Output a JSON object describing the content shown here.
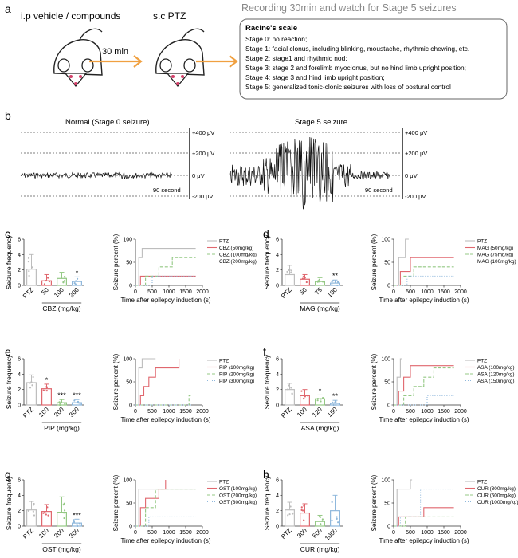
{
  "panel_a": {
    "label": "a",
    "step1": "i.p vehicle / compounds",
    "step2": "s.c PTZ",
    "interval": "30 min",
    "recording_title": "Recording 30min and watch for Stage 5 seizures",
    "racine_title": "Racine's scale",
    "stages": [
      "Stage 0: no reaction;",
      "Stage 1: facial clonus, including blinking, moustache, rhythmic chewing, etc.",
      "Stage 2: stage1 and rhythmic nod;",
      "Stage 3: stage 2 and forelimb myoclonus, but no hind limb upright position;",
      "Stage 4: stage 3 and hind limb upright position;",
      "Stage 5: generalized tonic-clonic seizures with loss of postural control"
    ]
  },
  "panel_b": {
    "label": "b",
    "left_title": "Normal (Stage 0 seizure)",
    "right_title": "Stage 5 seizure",
    "scale_labels": [
      "+400 μV",
      "+200 μV",
      "0 μV",
      "-200 μV"
    ],
    "duration_label": "90 second"
  },
  "chart_data": [
    {
      "panel": "c",
      "type": "bar",
      "title": "",
      "ylabel": "Seizure frequency",
      "xlabel": "CBZ (mg/kg)",
      "categories": [
        "PTZ",
        "50",
        "100",
        "200"
      ],
      "values": [
        2.1,
        0.6,
        0.9,
        0.5
      ],
      "errors": [
        1.9,
        0.8,
        0.8,
        0.6
      ],
      "sig": [
        "",
        "",
        "",
        "*"
      ],
      "colors": [
        "#bdbdbd",
        "#e0676e",
        "#94c884",
        "#8fb8dc"
      ],
      "ylim": [
        0,
        6
      ],
      "yticks": [
        0,
        2,
        4,
        6
      ]
    },
    {
      "panel": "c",
      "type": "line",
      "ylabel": "Seizure percent (%)",
      "xlabel": "Time after epilepcy induction (s)",
      "xlim": [
        0,
        2000
      ],
      "xticks": [
        0,
        500,
        1000,
        1500,
        2000
      ],
      "ylim": [
        0,
        100
      ],
      "yticks": [
        0,
        50,
        100
      ],
      "series": [
        {
          "name": "PTZ",
          "color": "#bdbdbd",
          "dash": "",
          "points": [
            [
              0,
              0
            ],
            [
              100,
              0
            ],
            [
              100,
              60
            ],
            [
              200,
              60
            ],
            [
              200,
              80
            ],
            [
              1800,
              80
            ]
          ]
        },
        {
          "name": "CBZ (50mg/kg)",
          "color": "#e0676e",
          "dash": "",
          "points": [
            [
              0,
              0
            ],
            [
              150,
              0
            ],
            [
              150,
              20
            ],
            [
              1800,
              20
            ]
          ]
        },
        {
          "name": "CBZ (100mg/kg)",
          "color": "#94c884",
          "dash": "4,2",
          "points": [
            [
              0,
              0
            ],
            [
              300,
              0
            ],
            [
              300,
              20
            ],
            [
              700,
              20
            ],
            [
              700,
              40
            ],
            [
              1100,
              40
            ],
            [
              1100,
              60
            ],
            [
              1800,
              60
            ]
          ]
        },
        {
          "name": "CBZ (200mg/kg)",
          "color": "#8fb8dc",
          "dash": "1,2",
          "points": [
            [
              0,
              0
            ],
            [
              500,
              0
            ],
            [
              500,
              20
            ],
            [
              1800,
              20
            ]
          ]
        }
      ]
    },
    {
      "panel": "d",
      "type": "bar",
      "ylabel": "Seizure frequency",
      "xlabel": "MAG (mg/kg)",
      "categories": [
        "PTZ",
        "50",
        "75",
        "100"
      ],
      "values": [
        1.4,
        0.8,
        0.5,
        0.3
      ],
      "errors": [
        1.2,
        0.6,
        0.5,
        0.4
      ],
      "sig": [
        "",
        "",
        "",
        "**"
      ],
      "colors": [
        "#bdbdbd",
        "#e0676e",
        "#94c884",
        "#8fb8dc"
      ],
      "ylim": [
        0,
        6
      ],
      "yticks": [
        0,
        2,
        4,
        6
      ]
    },
    {
      "panel": "d",
      "type": "line",
      "ylabel": "Seizure percent (%)",
      "xlabel": "Time after epilepcy induction (s)",
      "xlim": [
        0,
        2000
      ],
      "xticks": [
        0,
        500,
        1000,
        1500,
        2000
      ],
      "ylim": [
        0,
        100
      ],
      "yticks": [
        0,
        50,
        100
      ],
      "series": [
        {
          "name": "PTZ",
          "color": "#bdbdbd",
          "dash": "",
          "points": [
            [
              0,
              0
            ],
            [
              150,
              0
            ],
            [
              150,
              60
            ],
            [
              350,
              60
            ],
            [
              350,
              100
            ],
            [
              450,
              100
            ]
          ]
        },
        {
          "name": "MAG (50mg/kg)",
          "color": "#e0676e",
          "dash": "",
          "points": [
            [
              0,
              0
            ],
            [
              200,
              0
            ],
            [
              200,
              30
            ],
            [
              500,
              30
            ],
            [
              500,
              60
            ],
            [
              1800,
              60
            ]
          ]
        },
        {
          "name": "MAG (75mg/kg)",
          "color": "#94c884",
          "dash": "4,2",
          "points": [
            [
              0,
              0
            ],
            [
              250,
              0
            ],
            [
              250,
              20
            ],
            [
              600,
              20
            ],
            [
              600,
              40
            ],
            [
              1800,
              40
            ]
          ]
        },
        {
          "name": "MAG (100mg/kg)",
          "color": "#8fb8dc",
          "dash": "1,2",
          "points": [
            [
              0,
              0
            ],
            [
              400,
              0
            ],
            [
              400,
              20
            ],
            [
              1800,
              20
            ]
          ]
        }
      ]
    },
    {
      "panel": "e",
      "type": "bar",
      "ylabel": "Seizure frequency",
      "xlabel": "PIP (mg/kg)",
      "categories": [
        "PTZ",
        "100",
        "200",
        "300"
      ],
      "values": [
        2.9,
        2.1,
        0.3,
        0.3
      ],
      "errors": [
        1.0,
        0.6,
        0.4,
        0.4
      ],
      "sig": [
        "",
        "*",
        "***",
        "***"
      ],
      "colors": [
        "#bdbdbd",
        "#e0676e",
        "#94c884",
        "#8fb8dc"
      ],
      "ylim": [
        0,
        6
      ],
      "yticks": [
        0,
        2,
        4,
        6
      ]
    },
    {
      "panel": "e",
      "type": "line",
      "ylabel": "Seizure percent (%)",
      "xlabel": "Time after epilepcy induction (s)",
      "xlim": [
        0,
        2000
      ],
      "xticks": [
        0,
        500,
        1000,
        1500,
        2000
      ],
      "ylim": [
        0,
        100
      ],
      "yticks": [
        0,
        50,
        100
      ],
      "series": [
        {
          "name": "PTZ",
          "color": "#bdbdbd",
          "dash": "",
          "points": [
            [
              0,
              0
            ],
            [
              100,
              0
            ],
            [
              100,
              80
            ],
            [
              200,
              80
            ],
            [
              200,
              100
            ],
            [
              600,
              100
            ]
          ]
        },
        {
          "name": "PIP (100mg/kg)",
          "color": "#e0676e",
          "dash": "",
          "points": [
            [
              0,
              0
            ],
            [
              150,
              0
            ],
            [
              150,
              20
            ],
            [
              250,
              20
            ],
            [
              250,
              40
            ],
            [
              400,
              40
            ],
            [
              400,
              60
            ],
            [
              600,
              60
            ],
            [
              600,
              80
            ],
            [
              1300,
              80
            ],
            [
              1300,
              100
            ]
          ]
        },
        {
          "name": "PIP (200mg/kg)",
          "color": "#94c884",
          "dash": "4,2",
          "points": [
            [
              0,
              0
            ],
            [
              1600,
              0
            ],
            [
              1600,
              20
            ],
            [
              1650,
              20
            ]
          ]
        },
        {
          "name": "PIP (300mg/kg)",
          "color": "#8fb8dc",
          "dash": "1,2",
          "points": [
            [
              0,
              0
            ],
            [
              1700,
              0
            ]
          ]
        }
      ]
    },
    {
      "panel": "f",
      "type": "bar",
      "ylabel": "Seizure frequency",
      "xlabel": "ASA (mg/kg)",
      "categories": [
        "PTZ",
        "100",
        "120",
        "150"
      ],
      "values": [
        2.0,
        1.2,
        0.8,
        0.2
      ],
      "errors": [
        0.8,
        0.8,
        0.5,
        0.4
      ],
      "sig": [
        "",
        "",
        "*",
        "**"
      ],
      "colors": [
        "#bdbdbd",
        "#e0676e",
        "#94c884",
        "#8fb8dc"
      ],
      "ylim": [
        0,
        6
      ],
      "yticks": [
        0,
        2,
        4,
        6
      ]
    },
    {
      "panel": "f",
      "type": "line",
      "ylabel": "Seizure percent (%)",
      "xlabel": "Time after epilepcy induction (s)",
      "xlim": [
        0,
        2000
      ],
      "xticks": [
        0,
        500,
        1000,
        1500,
        2000
      ],
      "ylim": [
        0,
        100
      ],
      "yticks": [
        0,
        50,
        100
      ],
      "series": [
        {
          "name": "PTZ",
          "color": "#bdbdbd",
          "dash": "",
          "points": [
            [
              0,
              0
            ],
            [
              100,
              0
            ],
            [
              100,
              60
            ],
            [
              200,
              60
            ],
            [
              200,
              100
            ],
            [
              250,
              100
            ]
          ]
        },
        {
          "name": "ASA (100mg/kg)",
          "color": "#e0676e",
          "dash": "",
          "points": [
            [
              0,
              0
            ],
            [
              150,
              0
            ],
            [
              150,
              30
            ],
            [
              300,
              30
            ],
            [
              300,
              60
            ],
            [
              500,
              60
            ],
            [
              500,
              85
            ],
            [
              1800,
              85
            ]
          ]
        },
        {
          "name": "ASA (120mg/kg)",
          "color": "#94c884",
          "dash": "4,2",
          "points": [
            [
              0,
              0
            ],
            [
              300,
              0
            ],
            [
              300,
              20
            ],
            [
              600,
              20
            ],
            [
              600,
              40
            ],
            [
              900,
              40
            ],
            [
              900,
              60
            ],
            [
              1200,
              60
            ],
            [
              1200,
              80
            ],
            [
              1800,
              80
            ]
          ]
        },
        {
          "name": "ASA (150mg/kg)",
          "color": "#8fb8dc",
          "dash": "1,2",
          "points": [
            [
              0,
              0
            ],
            [
              1000,
              0
            ],
            [
              1000,
              20
            ],
            [
              1800,
              20
            ]
          ]
        }
      ]
    },
    {
      "panel": "g",
      "type": "bar",
      "ylabel": "Seizure frequency",
      "xlabel": "OST (mg/kg)",
      "categories": [
        "PTZ",
        "100",
        "200",
        "300"
      ],
      "values": [
        2.1,
        1.9,
        1.8,
        0.4
      ],
      "errors": [
        1.1,
        0.9,
        2.0,
        0.5
      ],
      "sig": [
        "",
        "",
        "",
        "***"
      ],
      "colors": [
        "#bdbdbd",
        "#e0676e",
        "#94c884",
        "#8fb8dc"
      ],
      "ylim": [
        0,
        6
      ],
      "yticks": [
        0,
        2,
        4,
        6
      ]
    },
    {
      "panel": "g",
      "type": "line",
      "ylabel": "Seizure percent (%)",
      "xlabel": "Time after epilepcy induction (s)",
      "xlim": [
        0,
        2000
      ],
      "xticks": [
        0,
        500,
        1000,
        1500,
        2000
      ],
      "ylim": [
        0,
        100
      ],
      "yticks": [
        0,
        50,
        100
      ],
      "series": [
        {
          "name": "PTZ",
          "color": "#bdbdbd",
          "dash": "",
          "points": [
            [
              0,
              0
            ],
            [
              100,
              0
            ],
            [
              100,
              80
            ],
            [
              1800,
              80
            ]
          ]
        },
        {
          "name": "OST (100mg/kg)",
          "color": "#e0676e",
          "dash": "",
          "points": [
            [
              0,
              0
            ],
            [
              150,
              0
            ],
            [
              150,
              40
            ],
            [
              300,
              40
            ],
            [
              300,
              60
            ],
            [
              700,
              60
            ],
            [
              700,
              80
            ],
            [
              900,
              80
            ],
            [
              900,
              100
            ]
          ]
        },
        {
          "name": "OST (200mg/kg)",
          "color": "#94c884",
          "dash": "4,2",
          "points": [
            [
              0,
              0
            ],
            [
              300,
              0
            ],
            [
              300,
              40
            ],
            [
              600,
              40
            ],
            [
              600,
              80
            ],
            [
              1800,
              80
            ]
          ]
        },
        {
          "name": "OST (300mg/kg)",
          "color": "#8fb8dc",
          "dash": "1,2",
          "points": [
            [
              0,
              0
            ],
            [
              400,
              0
            ],
            [
              400,
              20
            ],
            [
              1800,
              20
            ]
          ]
        }
      ]
    },
    {
      "panel": "h",
      "type": "bar",
      "ylabel": "Seizure frequency",
      "xlabel": "CUR (mg/kg)",
      "categories": [
        "PTZ",
        "300",
        "600",
        "1000"
      ],
      "values": [
        2.1,
        1.7,
        0.6,
        2.0
      ],
      "errors": [
        1.0,
        1.2,
        0.8,
        2.0
      ],
      "sig": [
        "",
        "",
        "",
        ""
      ],
      "colors": [
        "#bdbdbd",
        "#e0676e",
        "#94c884",
        "#8fb8dc"
      ],
      "ylim": [
        0,
        6
      ],
      "yticks": [
        0,
        2,
        4,
        6
      ]
    },
    {
      "panel": "h",
      "type": "line",
      "ylabel": "Seizure percent (%)",
      "xlabel": "Time after epilepcy induction (s)",
      "xlim": [
        0,
        2000
      ],
      "xticks": [
        0,
        500,
        1000,
        1500,
        2000
      ],
      "ylim": [
        0,
        100
      ],
      "yticks": [
        0,
        50,
        100
      ],
      "series": [
        {
          "name": "PTZ",
          "color": "#bdbdbd",
          "dash": "",
          "points": [
            [
              0,
              0
            ],
            [
              100,
              0
            ],
            [
              100,
              80
            ],
            [
              500,
              80
            ],
            [
              500,
              100
            ],
            [
              550,
              100
            ]
          ]
        },
        {
          "name": "CUR (300mg/kg)",
          "color": "#e0676e",
          "dash": "",
          "points": [
            [
              0,
              0
            ],
            [
              150,
              0
            ],
            [
              150,
              20
            ],
            [
              900,
              20
            ],
            [
              900,
              40
            ],
            [
              1800,
              40
            ]
          ]
        },
        {
          "name": "CUR (600mg/kg)",
          "color": "#94c884",
          "dash": "4,2",
          "points": [
            [
              0,
              0
            ],
            [
              350,
              0
            ],
            [
              350,
              20
            ],
            [
              1800,
              20
            ]
          ]
        },
        {
          "name": "CUR (1000mg/kg)",
          "color": "#8fb8dc",
          "dash": "1,2",
          "points": [
            [
              0,
              0
            ],
            [
              200,
              0
            ],
            [
              200,
              20
            ],
            [
              800,
              20
            ],
            [
              800,
              80
            ],
            [
              1800,
              80
            ]
          ]
        }
      ]
    }
  ]
}
